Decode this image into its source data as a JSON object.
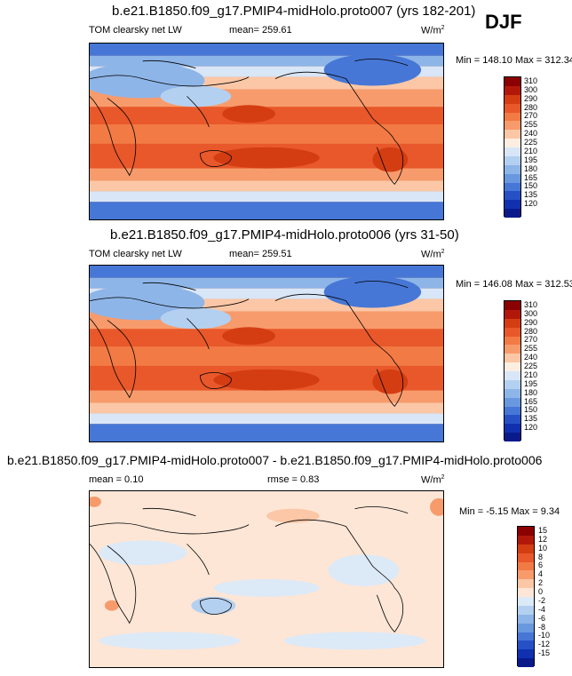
{
  "season": "DJF",
  "panels": [
    {
      "title": "b.e21.B1850.f09_g17.PMIP4-midHolo.proto007 (yrs 182-201)",
      "variable": "TOM clearsky net LW",
      "mean": "mean= 259.61",
      "units": "W/m",
      "units_sup": "2",
      "minmax": "Min = 148.10 Max = 312.34",
      "colorbar": {
        "labels": [
          "310",
          "300",
          "290",
          "280",
          "270",
          "255",
          "240",
          "225",
          "210",
          "195",
          "180",
          "165",
          "150",
          "135",
          "120"
        ],
        "colors": [
          "#8b0000",
          "#b2180a",
          "#d43d12",
          "#e8582a",
          "#f27a45",
          "#f79b6c",
          "#fbc7a6",
          "#fdeee2",
          "#d8e6f7",
          "#b4d0f0",
          "#8db5e8",
          "#6a98de",
          "#4677d6",
          "#2651c6",
          "#1030b0",
          "#0a1a8a"
        ]
      }
    },
    {
      "title": "b.e21.B1850.f09_g17.PMIP4-midHolo.proto006 (yrs 31-50)",
      "variable": "TOM clearsky net LW",
      "mean": "mean= 259.51",
      "units": "W/m",
      "units_sup": "2",
      "minmax": "Min = 146.08 Max = 312.53",
      "colorbar": {
        "labels": [
          "310",
          "300",
          "290",
          "280",
          "270",
          "255",
          "240",
          "225",
          "210",
          "195",
          "180",
          "165",
          "150",
          "135",
          "120"
        ],
        "colors": [
          "#8b0000",
          "#b2180a",
          "#d43d12",
          "#e8582a",
          "#f27a45",
          "#f79b6c",
          "#fbc7a6",
          "#fdeee2",
          "#d8e6f7",
          "#b4d0f0",
          "#8db5e8",
          "#6a98de",
          "#4677d6",
          "#2651c6",
          "#1030b0",
          "#0a1a8a"
        ]
      }
    },
    {
      "title": "b.e21.B1850.f09_g17.PMIP4-midHolo.proto007 - b.e21.B1850.f09_g17.PMIP4-midHolo.proto006",
      "mean": "mean =   0.10",
      "rmse": "rmse =   0.83",
      "units": "W/m",
      "units_sup": "2",
      "minmax": "Min =  -5.15 Max =   9.34",
      "colorbar": {
        "labels": [
          "15",
          "12",
          "10",
          "8",
          "6",
          "4",
          "2",
          "0",
          "-2",
          "-4",
          "-6",
          "-8",
          "-10",
          "-12",
          "-15"
        ],
        "colors": [
          "#8b0000",
          "#b2180a",
          "#d43d12",
          "#e8582a",
          "#f27a45",
          "#f79b6c",
          "#fbc7a6",
          "#fde6d6",
          "#dce9f7",
          "#b4d0f0",
          "#8db5e8",
          "#6a98de",
          "#4677d6",
          "#2651c6",
          "#1030b0",
          "#0a1a8a"
        ]
      }
    }
  ]
}
